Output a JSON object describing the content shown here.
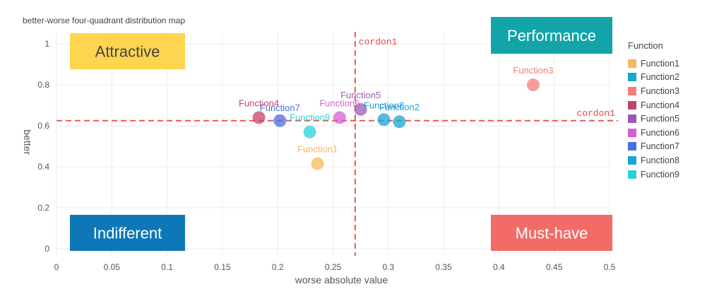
{
  "title": "better-worse four-quadrant distribution map",
  "chart_data": {
    "type": "scatter",
    "title": "better-worse four-quadrant distribution map",
    "xlabel": "worse absolute value",
    "ylabel": "better",
    "xlim": [
      0,
      0.5
    ],
    "ylim": [
      0,
      1.05
    ],
    "xticks": [
      "0",
      "0.05",
      "0.1",
      "0.15",
      "0.2",
      "0.25",
      "0.3",
      "0.35",
      "0.4",
      "0.45",
      "0.5"
    ],
    "yticks": [
      "0",
      "0.2",
      "0.4",
      "0.6",
      "0.8",
      "1"
    ],
    "legend_title": "Function",
    "legend_position": "right",
    "points": [
      {
        "name": "Function1",
        "x": 0.236,
        "y": 0.415,
        "color": "#f6b85c"
      },
      {
        "name": "Function2",
        "x": 0.31,
        "y": 0.62,
        "color": "#17a8d0"
      },
      {
        "name": "Function3",
        "x": 0.431,
        "y": 0.8,
        "color": "#f47c7c"
      },
      {
        "name": "Function4",
        "x": 0.183,
        "y": 0.64,
        "color": "#c7426a"
      },
      {
        "name": "Function5",
        "x": 0.275,
        "y": 0.68,
        "color": "#9b59b6"
      },
      {
        "name": "Function6",
        "x": 0.256,
        "y": 0.64,
        "color": "#d65fd6"
      },
      {
        "name": "Function7",
        "x": 0.202,
        "y": 0.625,
        "color": "#4a6ee0"
      },
      {
        "name": "Function8",
        "x": 0.296,
        "y": 0.63,
        "color": "#1aa3d8"
      },
      {
        "name": "Function9",
        "x": 0.229,
        "y": 0.57,
        "color": "#27d3d8"
      }
    ],
    "cordon1_x": 0.27,
    "cordon1_y": 0.625,
    "cordon_label": "cordon1",
    "quadrants": {
      "top_left": {
        "label": "Attractive",
        "bg": "#ffd54f",
        "fg": "#444444"
      },
      "top_right": {
        "label": "Performance",
        "bg": "#12a4a8",
        "fg": "#ffffff"
      },
      "bottom_left": {
        "label": "Indifferent",
        "bg": "#0d77b8",
        "fg": "#ffffff"
      },
      "bottom_right": {
        "label": "Must-have",
        "bg": "#f26b66",
        "fg": "#ffffff"
      }
    }
  }
}
